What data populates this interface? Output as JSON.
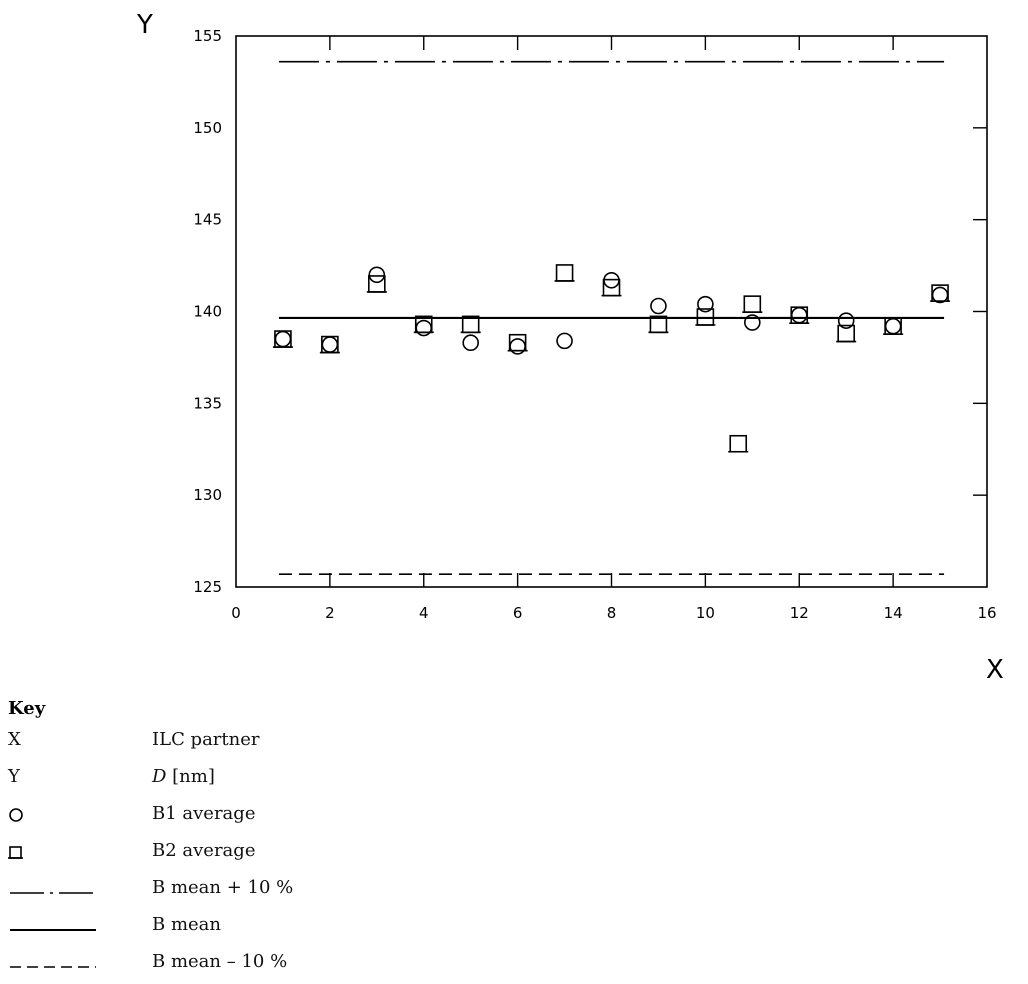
{
  "chart_data": {
    "type": "scatter",
    "x_axis_letter": "X",
    "y_axis_letter": "Y",
    "xlim": [
      0,
      16
    ],
    "ylim": [
      125,
      155
    ],
    "x_ticks": [
      0,
      2,
      4,
      6,
      8,
      10,
      12,
      14,
      16
    ],
    "y_ticks": [
      125,
      130,
      135,
      140,
      145,
      150,
      155
    ],
    "grid": false,
    "series": [
      {
        "name": "B1 average",
        "marker": "circle",
        "points": [
          [
            1,
            138.5
          ],
          [
            2,
            138.2
          ],
          [
            3,
            142.0
          ],
          [
            4,
            139.1
          ],
          [
            5,
            138.3
          ],
          [
            6,
            138.1
          ],
          [
            7,
            138.4
          ],
          [
            8,
            141.7
          ],
          [
            9,
            140.3
          ],
          [
            10,
            140.4
          ],
          [
            11,
            139.4
          ],
          [
            12,
            139.8
          ],
          [
            13,
            139.5
          ],
          [
            14,
            139.2
          ],
          [
            15,
            140.9
          ]
        ]
      },
      {
        "name": "B2 average",
        "marker": "square",
        "points": [
          [
            1,
            138.5
          ],
          [
            2,
            138.2
          ],
          [
            3,
            141.5
          ],
          [
            4,
            139.3
          ],
          [
            5,
            139.3
          ],
          [
            6,
            138.3
          ],
          [
            7,
            142.1
          ],
          [
            8,
            141.3
          ],
          [
            9,
            139.3
          ],
          [
            10,
            139.7
          ],
          [
            10.7,
            132.8
          ],
          [
            11,
            140.4
          ],
          [
            12,
            139.8
          ],
          [
            13,
            138.8
          ],
          [
            14,
            139.2
          ],
          [
            15,
            141.0
          ]
        ]
      }
    ],
    "reference_lines": [
      {
        "name": "B mean + 10 %",
        "style": "dash-dot",
        "y": 153.6,
        "x_range": [
          1,
          15
        ]
      },
      {
        "name": "B mean",
        "style": "solid",
        "y": 139.65,
        "x_range": [
          1,
          15
        ]
      },
      {
        "name": "B mean – 10 %",
        "style": "dashed",
        "y": 125.7,
        "x_range": [
          1,
          15
        ]
      }
    ]
  },
  "key": {
    "title": "Key",
    "rows": [
      {
        "symbol": "X",
        "label": "ILC partner"
      },
      {
        "symbol": "Y",
        "label_italic": "D",
        "label": " [nm]"
      },
      {
        "symbol": "circle-icon",
        "label": "B1 average"
      },
      {
        "symbol": "square-icon",
        "label": "B2 average"
      },
      {
        "symbol": "dash-dot-line",
        "label": "B mean + 10 %"
      },
      {
        "symbol": "solid-line",
        "label": "B mean"
      },
      {
        "symbol": "dashed-line",
        "label": "B mean – 10 %"
      }
    ]
  }
}
